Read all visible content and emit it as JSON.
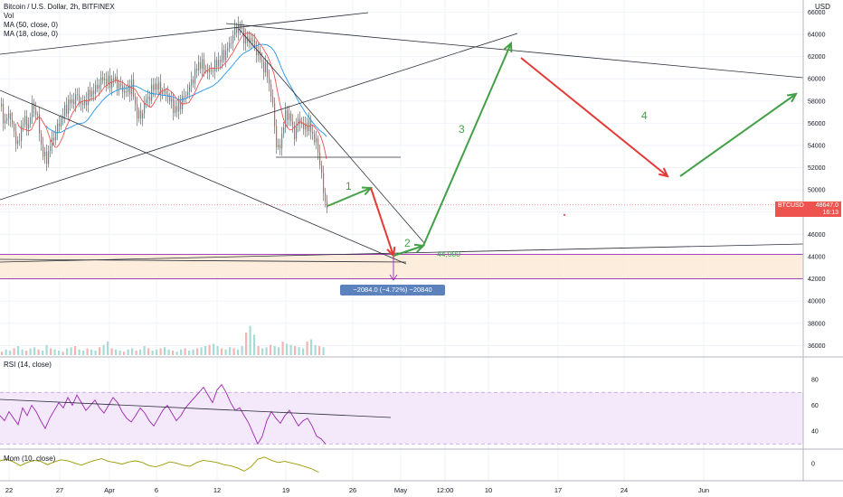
{
  "header": {
    "title": "Bitcoin / U.S. Dollar, 2h, BITFINEX",
    "vol_label": "Vol",
    "ma50_label": "MA (50, close, 0)",
    "ma18_label": "MA (18, close, 0)",
    "currency": "USD"
  },
  "price_tag": {
    "symbol": "BTCUSD",
    "value": "48647.0",
    "countdown": "16:13"
  },
  "measurement": {
    "text": "−2084.0 (−4.72%) −20840"
  },
  "rsi_pane": {
    "label": "RSI (14, close)",
    "ticks": [
      "80",
      "60",
      "40"
    ]
  },
  "mom_pane": {
    "label": "Mom (10, close)",
    "ticks": [
      "0"
    ]
  },
  "colors": {
    "up": "#26a69a",
    "down": "#ef5350",
    "ma50": "#2196f3",
    "ma18": "#ef5350",
    "rsi": "#9c27b0",
    "mom": "#9a9a00",
    "arrow_green": "#43a047",
    "arrow_red": "#e53935",
    "support_line": "#9c27b0",
    "zone_fill": "#fde9d4",
    "text": "#131722"
  },
  "chart_data": {
    "type": "candlestick",
    "title": "Bitcoin / U.S. Dollar, 2h, BITFINEX",
    "y_axis_ticks": [
      36000,
      38000,
      40000,
      42000,
      44000,
      46000,
      48000,
      50000,
      52000,
      54000,
      56000,
      58000,
      60000,
      62000,
      64000,
      66000
    ],
    "ylim": [
      35000,
      66900
    ],
    "x_axis_ticks": [
      "22",
      "27",
      "Apr",
      "6",
      "12",
      "19",
      "26",
      "May",
      "12:00",
      "10",
      "17",
      "24",
      "Jun"
    ],
    "last_price": 48647.0,
    "horizontal_level": {
      "label": "44,000",
      "value": 44000
    },
    "support_zone": [
      42000,
      44200
    ],
    "wave_labels": [
      "1",
      "2",
      "3",
      "4"
    ],
    "price_path_approx": [
      [
        0,
        57500
      ],
      [
        5,
        56000
      ],
      [
        10,
        57000
      ],
      [
        15,
        55000
      ],
      [
        20,
        54000
      ],
      [
        25,
        56500
      ],
      [
        30,
        55500
      ],
      [
        35,
        57500
      ],
      [
        40,
        57000
      ],
      [
        45,
        54000
      ],
      [
        50,
        52500
      ],
      [
        55,
        54000
      ],
      [
        60,
        55000
      ],
      [
        65,
        56000
      ],
      [
        70,
        57000
      ],
      [
        75,
        57800
      ],
      [
        80,
        58000
      ],
      [
        85,
        58500
      ],
      [
        90,
        57500
      ],
      [
        95,
        58200
      ],
      [
        100,
        58800
      ],
      [
        105,
        59000
      ],
      [
        110,
        59800
      ],
      [
        115,
        60000
      ],
      [
        120,
        59600
      ],
      [
        125,
        60000
      ],
      [
        130,
        59500
      ],
      [
        135,
        59000
      ],
      [
        140,
        58800
      ],
      [
        145,
        59500
      ],
      [
        150,
        57000
      ],
      [
        155,
        56500
      ],
      [
        160,
        58000
      ],
      [
        165,
        58500
      ],
      [
        170,
        59500
      ],
      [
        175,
        59200
      ],
      [
        180,
        58800
      ],
      [
        185,
        58500
      ],
      [
        190,
        57500
      ],
      [
        195,
        57200
      ],
      [
        200,
        58000
      ],
      [
        205,
        58600
      ],
      [
        210,
        59500
      ],
      [
        215,
        60500
      ],
      [
        220,
        61500
      ],
      [
        225,
        61000
      ],
      [
        230,
        60500
      ],
      [
        235,
        61000
      ],
      [
        240,
        61500
      ],
      [
        245,
        62000
      ],
      [
        250,
        62500
      ],
      [
        255,
        63500
      ],
      [
        260,
        64500
      ],
      [
        264,
        64800
      ],
      [
        268,
        64000
      ],
      [
        272,
        63200
      ],
      [
        276,
        63800
      ],
      [
        280,
        63000
      ],
      [
        285,
        62200
      ],
      [
        290,
        61200
      ],
      [
        295,
        60500
      ],
      [
        298,
        59000
      ],
      [
        302,
        57000
      ],
      [
        305,
        54000
      ],
      [
        308,
        53500
      ],
      [
        312,
        55500
      ],
      [
        316,
        57000
      ],
      [
        320,
        56500
      ],
      [
        325,
        55000
      ],
      [
        330,
        56500
      ],
      [
        335,
        55500
      ],
      [
        340,
        56000
      ],
      [
        345,
        55000
      ],
      [
        350,
        54000
      ],
      [
        354,
        52000
      ],
      [
        358,
        49000
      ],
      [
        362,
        48600
      ]
    ],
    "volume_approx": [
      3,
      5,
      4,
      6,
      8,
      5,
      4,
      6,
      7,
      5,
      4,
      9,
      6,
      5,
      4,
      3,
      6,
      7,
      8,
      5,
      4,
      6,
      5,
      4,
      7,
      9,
      12,
      6,
      5,
      4,
      3,
      5,
      6,
      4,
      5,
      8,
      6,
      4,
      5,
      6,
      7,
      5,
      4,
      3,
      5,
      6,
      4,
      5,
      6,
      7,
      8,
      9,
      10,
      8,
      6,
      5,
      7,
      6,
      5,
      8,
      20,
      26,
      18,
      8,
      6,
      7,
      9,
      8,
      7,
      12,
      10,
      9,
      8,
      7,
      6,
      12,
      14,
      9,
      8,
      7
    ],
    "rsi_approx": [
      52,
      48,
      55,
      50,
      45,
      58,
      52,
      60,
      55,
      48,
      42,
      50,
      56,
      62,
      58,
      66,
      60,
      68,
      62,
      56,
      60,
      64,
      58,
      54,
      60,
      66,
      62,
      55,
      50,
      47,
      52,
      58,
      54,
      48,
      44,
      50,
      56,
      60,
      54,
      48,
      52,
      58,
      62,
      66,
      70,
      74,
      68,
      62,
      72,
      76,
      70,
      62,
      56,
      58,
      52,
      46,
      38,
      30,
      36,
      48,
      55,
      50,
      46,
      52,
      56,
      50,
      44,
      48,
      50,
      44,
      36,
      34,
      30
    ],
    "mom_approx": [
      0.5,
      0.8,
      0.3,
      -0.4,
      0.2,
      0.6,
      0.4,
      -0.2,
      0.3,
      0.7,
      0.5,
      0.1,
      -0.3,
      0.2,
      0.6,
      0.9,
      0.4,
      0.2,
      -0.1,
      0.3,
      0.5,
      0.2,
      -0.4,
      -0.6,
      -0.2,
      0.3,
      0.1,
      -0.3,
      -0.5,
      0.2,
      0.6,
      0.4,
      0.2,
      -0.2,
      -0.4,
      -0.8,
      -1.4,
      -0.6,
      0.8,
      1.2,
      0.6,
      0.2,
      0.4,
      0.1,
      -0.2,
      -0.6,
      -1.0,
      -1.6
    ]
  }
}
